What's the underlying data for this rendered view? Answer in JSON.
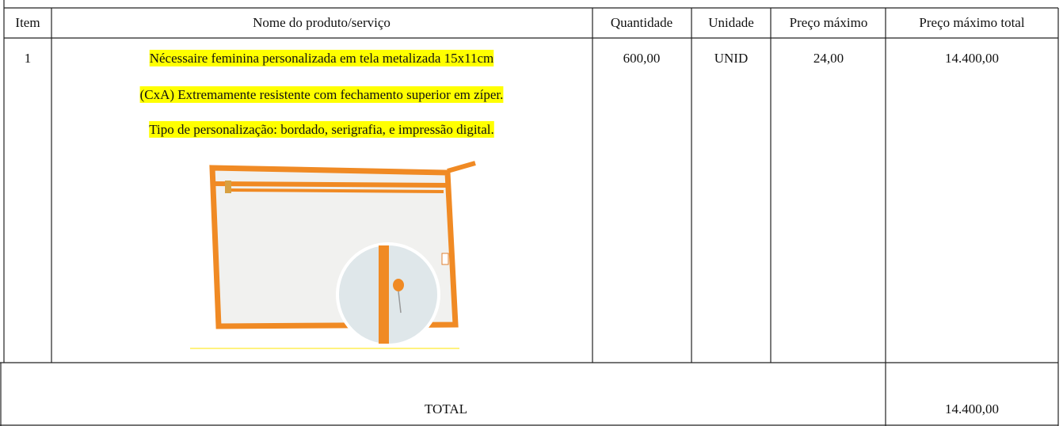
{
  "table": {
    "header": [
      "Item",
      "Nome do produto/serviço",
      "Quantidade",
      "Unidade",
      "Preço máximo",
      "Preço máximo total"
    ],
    "rows": [
      [
        "1",
        [
          "Nécessaire feminina personalizada em tela metalizada 15x11cm ",
          "(CxA) Extremamente resistente com fechamento superior em zíper.",
          "Tipo de personalização: bordado, serigrafia, e impressão digital."
        ],
        "600,00",
        "UNID",
        "24,00",
        "14.400,00"
      ]
    ],
    "total": {
      "label": "TOTAL",
      "value": "14.400,00"
    }
  }
}
